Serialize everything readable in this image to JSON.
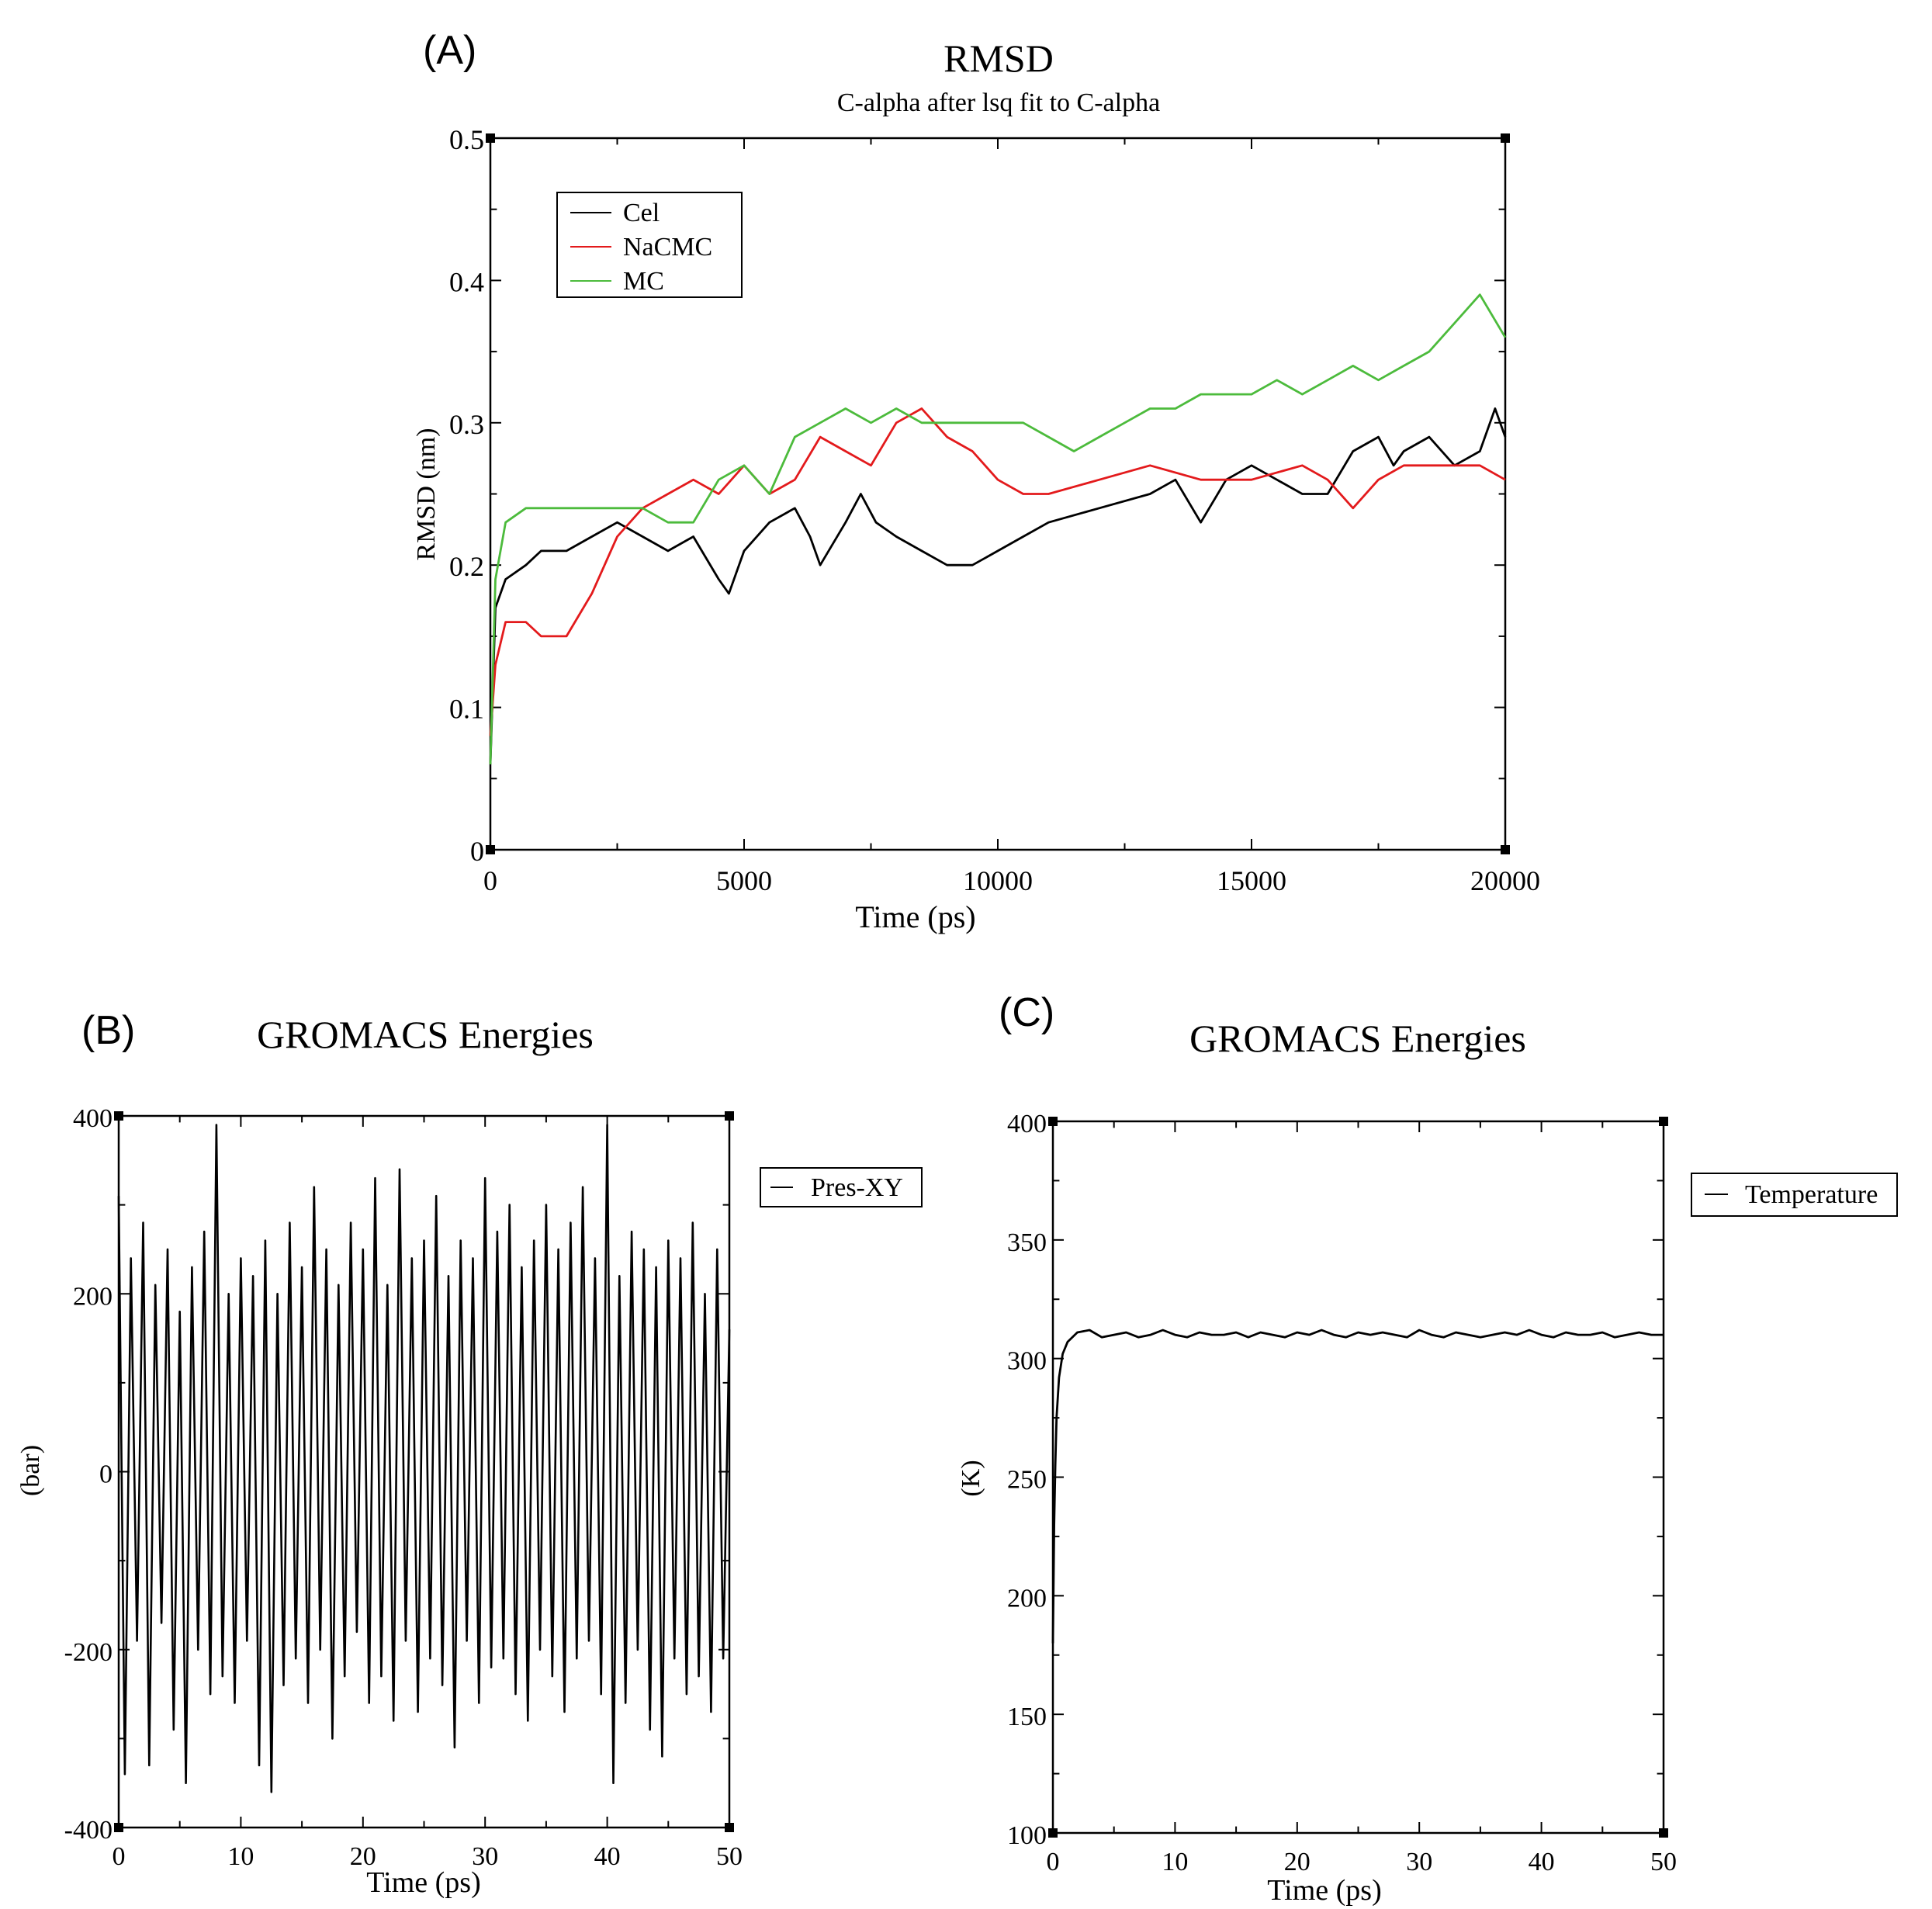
{
  "chart_data": [
    {
      "panel_label": "(A)",
      "type": "line",
      "title": "RMSD",
      "subtitle": "C-alpha after lsq fit to C-alpha",
      "xlabel": "Time (ps)",
      "ylabel": "RMSD (nm)",
      "xlim": [
        0,
        20000
      ],
      "ylim": [
        0,
        0.5
      ],
      "xticks": [
        0,
        5000,
        10000,
        15000,
        20000
      ],
      "xtick_labels": [
        "0",
        "5000",
        "10000",
        "15000",
        "20000"
      ],
      "yticks": [
        0,
        0.1,
        0.2,
        0.3,
        0.4,
        0.5
      ],
      "ytick_labels": [
        "0",
        "0.1",
        "0.2",
        "0.3",
        "0.4",
        "0.5"
      ],
      "legend_position": "top-left",
      "series": [
        {
          "name": "Cel",
          "color": "#000000",
          "x": [
            0,
            100,
            300,
            700,
            1000,
            1500,
            2000,
            2500,
            3000,
            3500,
            4000,
            4500,
            4700,
            5000,
            5500,
            6000,
            6300,
            6500,
            7000,
            7300,
            7600,
            8000,
            8500,
            9000,
            9500,
            10000,
            10500,
            11000,
            12000,
            13000,
            13500,
            14000,
            14500,
            15000,
            15500,
            16000,
            16500,
            17000,
            17500,
            17800,
            18000,
            18500,
            19000,
            19500,
            19800,
            20000
          ],
          "values": [
            0.06,
            0.17,
            0.19,
            0.2,
            0.21,
            0.21,
            0.22,
            0.23,
            0.22,
            0.21,
            0.22,
            0.19,
            0.18,
            0.21,
            0.23,
            0.24,
            0.22,
            0.2,
            0.23,
            0.25,
            0.23,
            0.22,
            0.21,
            0.2,
            0.2,
            0.21,
            0.22,
            0.23,
            0.24,
            0.25,
            0.26,
            0.23,
            0.26,
            0.27,
            0.26,
            0.25,
            0.25,
            0.28,
            0.29,
            0.27,
            0.28,
            0.29,
            0.27,
            0.28,
            0.31,
            0.29
          ]
        },
        {
          "name": "NaCMC",
          "color": "#e31a1c",
          "x": [
            0,
            100,
            300,
            700,
            1000,
            1500,
            2000,
            2500,
            3000,
            3500,
            4000,
            4500,
            5000,
            5500,
            6000,
            6500,
            7000,
            7500,
            8000,
            8500,
            9000,
            9500,
            10000,
            10500,
            11000,
            12000,
            13000,
            14000,
            15000,
            16000,
            16500,
            17000,
            17500,
            18000,
            18500,
            19000,
            19500,
            20000
          ],
          "values": [
            0.08,
            0.13,
            0.16,
            0.16,
            0.15,
            0.15,
            0.18,
            0.22,
            0.24,
            0.25,
            0.26,
            0.25,
            0.27,
            0.25,
            0.26,
            0.29,
            0.28,
            0.27,
            0.3,
            0.31,
            0.29,
            0.28,
            0.26,
            0.25,
            0.25,
            0.26,
            0.27,
            0.26,
            0.26,
            0.27,
            0.26,
            0.24,
            0.26,
            0.27,
            0.27,
            0.27,
            0.27,
            0.26
          ]
        },
        {
          "name": "MC",
          "color": "#4cbb3c",
          "x": [
            0,
            100,
            300,
            700,
            1000,
            1500,
            2000,
            2500,
            3000,
            3500,
            4000,
            4500,
            5000,
            5500,
            6000,
            6500,
            7000,
            7500,
            8000,
            8500,
            9000,
            9500,
            10000,
            10500,
            11000,
            11500,
            12000,
            12500,
            13000,
            13500,
            14000,
            14500,
            15000,
            15500,
            16000,
            16500,
            17000,
            17500,
            18000,
            18500,
            19000,
            19500,
            20000
          ],
          "values": [
            0.06,
            0.19,
            0.23,
            0.24,
            0.24,
            0.24,
            0.24,
            0.24,
            0.24,
            0.23,
            0.23,
            0.26,
            0.27,
            0.25,
            0.29,
            0.3,
            0.31,
            0.3,
            0.31,
            0.3,
            0.3,
            0.3,
            0.3,
            0.3,
            0.29,
            0.28,
            0.29,
            0.3,
            0.31,
            0.31,
            0.32,
            0.32,
            0.32,
            0.33,
            0.32,
            0.33,
            0.34,
            0.33,
            0.34,
            0.35,
            0.37,
            0.39,
            0.36
          ]
        }
      ]
    },
    {
      "panel_label": "(B)",
      "type": "line",
      "title": "GROMACS Energies",
      "xlabel": "Time (ps)",
      "ylabel": "(bar)",
      "xlim": [
        0,
        50
      ],
      "ylim": [
        -400,
        400
      ],
      "xticks": [
        0,
        10,
        20,
        30,
        40,
        50
      ],
      "xtick_labels": [
        "0",
        "10",
        "20",
        "30",
        "40",
        "50"
      ],
      "yticks": [
        -400,
        -200,
        0,
        200,
        400
      ],
      "ytick_labels": [
        "-400",
        "-200",
        "0",
        "200",
        "400"
      ],
      "legend_position": "right",
      "series": [
        {
          "name": "Pres-XY",
          "color": "#000000",
          "x": [
            0,
            0.5,
            1,
            1.5,
            2,
            2.5,
            3,
            3.5,
            4,
            4.5,
            5,
            5.5,
            6,
            6.5,
            7,
            7.5,
            8,
            8.5,
            9,
            9.5,
            10,
            10.5,
            11,
            11.5,
            12,
            12.5,
            13,
            13.5,
            14,
            14.5,
            15,
            15.5,
            16,
            16.5,
            17,
            17.5,
            18,
            18.5,
            19,
            19.5,
            20,
            20.5,
            21,
            21.5,
            22,
            22.5,
            23,
            23.5,
            24,
            24.5,
            25,
            25.5,
            26,
            26.5,
            27,
            27.5,
            28,
            28.5,
            29,
            29.5,
            30,
            30.5,
            31,
            31.5,
            32,
            32.5,
            33,
            33.5,
            34,
            34.5,
            35,
            35.5,
            36,
            36.5,
            37,
            37.5,
            38,
            38.5,
            39,
            39.5,
            40,
            40.5,
            41,
            41.5,
            42,
            42.5,
            43,
            43.5,
            44,
            44.5,
            45,
            45.5,
            46,
            46.5,
            47,
            47.5,
            48,
            48.5,
            49,
            49.5,
            50
          ],
          "values": [
            310,
            -340,
            240,
            -190,
            280,
            -330,
            210,
            -170,
            250,
            -290,
            180,
            -350,
            230,
            -200,
            270,
            -250,
            390,
            -230,
            200,
            -260,
            240,
            -190,
            220,
            -330,
            260,
            -360,
            200,
            -240,
            280,
            -210,
            230,
            -260,
            320,
            -200,
            250,
            -300,
            210,
            -230,
            280,
            -180,
            250,
            -260,
            330,
            -230,
            210,
            -280,
            340,
            -190,
            240,
            -270,
            260,
            -210,
            310,
            -240,
            220,
            -310,
            260,
            -190,
            240,
            -260,
            330,
            -220,
            270,
            -210,
            300,
            -250,
            230,
            -280,
            260,
            -200,
            300,
            -230,
            250,
            -270,
            280,
            -210,
            320,
            -190,
            240,
            -250,
            390,
            -350,
            220,
            -260,
            270,
            -200,
            250,
            -290,
            230,
            -320,
            260,
            -210,
            240,
            -250,
            280,
            -230,
            200,
            -270,
            250,
            -210,
            160
          ]
        }
      ]
    },
    {
      "panel_label": "(C)",
      "type": "line",
      "title": "GROMACS Energies",
      "xlabel": "Time (ps)",
      "ylabel": "(K)",
      "xlim": [
        0,
        50
      ],
      "ylim": [
        100,
        400
      ],
      "xticks": [
        0,
        10,
        20,
        30,
        40,
        50
      ],
      "xtick_labels": [
        "0",
        "10",
        "20",
        "30",
        "40",
        "50"
      ],
      "yticks": [
        100,
        150,
        200,
        250,
        300,
        350,
        400
      ],
      "ytick_labels": [
        "100",
        "150",
        "200",
        "250",
        "300",
        "350",
        "400"
      ],
      "legend_position": "right",
      "series": [
        {
          "name": "Temperature",
          "color": "#000000",
          "x": [
            0,
            0.1,
            0.2,
            0.3,
            0.5,
            0.8,
            1.2,
            2,
            3,
            4,
            5,
            6,
            7,
            8,
            9,
            10,
            11,
            12,
            13,
            14,
            15,
            16,
            17,
            18,
            19,
            20,
            21,
            22,
            23,
            24,
            25,
            26,
            27,
            28,
            29,
            30,
            31,
            32,
            33,
            34,
            35,
            36,
            37,
            38,
            39,
            40,
            41,
            42,
            43,
            44,
            45,
            46,
            47,
            48,
            49,
            50
          ],
          "values": [
            180,
            230,
            255,
            275,
            292,
            302,
            307,
            311,
            312,
            309,
            310,
            311,
            309,
            310,
            312,
            310,
            309,
            311,
            310,
            310,
            311,
            309,
            311,
            310,
            309,
            311,
            310,
            312,
            310,
            309,
            311,
            310,
            311,
            310,
            309,
            312,
            310,
            309,
            311,
            310,
            309,
            310,
            311,
            310,
            312,
            310,
            309,
            311,
            310,
            310,
            311,
            309,
            310,
            311,
            310,
            310
          ]
        }
      ]
    }
  ]
}
